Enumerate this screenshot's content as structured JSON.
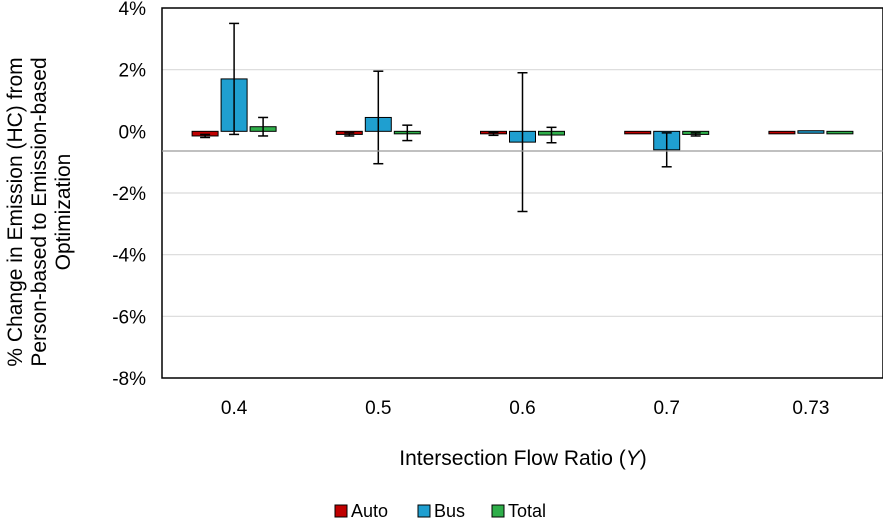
{
  "colors": {
    "Auto": "#c00000",
    "Bus": "#1f9fd0",
    "Total": "#2fae4a",
    "grid": "#d9d9d9",
    "axis": "#000000"
  },
  "chart_data": {
    "type": "bar",
    "categories": [
      "0.4",
      "0.5",
      "0.6",
      "0.7",
      "0.73"
    ],
    "series": [
      {
        "name": "Auto",
        "values": [
          -0.15,
          -0.1,
          -0.08,
          -0.05,
          -0.03
        ],
        "error": [
          0.05,
          0.05,
          0.05,
          0.03,
          0.02
        ]
      },
      {
        "name": "Bus",
        "values": [
          1.7,
          0.45,
          -0.35,
          -0.6,
          0.02
        ],
        "error": [
          1.8,
          1.5,
          2.25,
          0.55,
          0.02
        ]
      },
      {
        "name": "Total",
        "values": [
          0.15,
          -0.05,
          -0.12,
          -0.1,
          -0.05
        ],
        "error": [
          0.3,
          0.25,
          0.25,
          0.05,
          0.02
        ]
      }
    ],
    "title": "",
    "xlabel": "Intersection Flow Ratio (Y)",
    "xlabel_main": "Intersection Flow Ratio (",
    "xlabel_var": "Y",
    "xlabel_end": ")",
    "ylabel_lines": [
      "% Change in Emission (HC) from",
      "Person-based to Emission-based",
      "Optimization"
    ],
    "ylim": [
      -8,
      4
    ],
    "yticks": [
      4,
      2,
      0,
      -2,
      -4,
      -6,
      -8
    ],
    "ytick_labels": [
      "4%",
      "2%",
      "0%",
      "-2%",
      "-4%",
      "-6%",
      "-8%"
    ],
    "grid": true,
    "legend_position": "bottom"
  }
}
